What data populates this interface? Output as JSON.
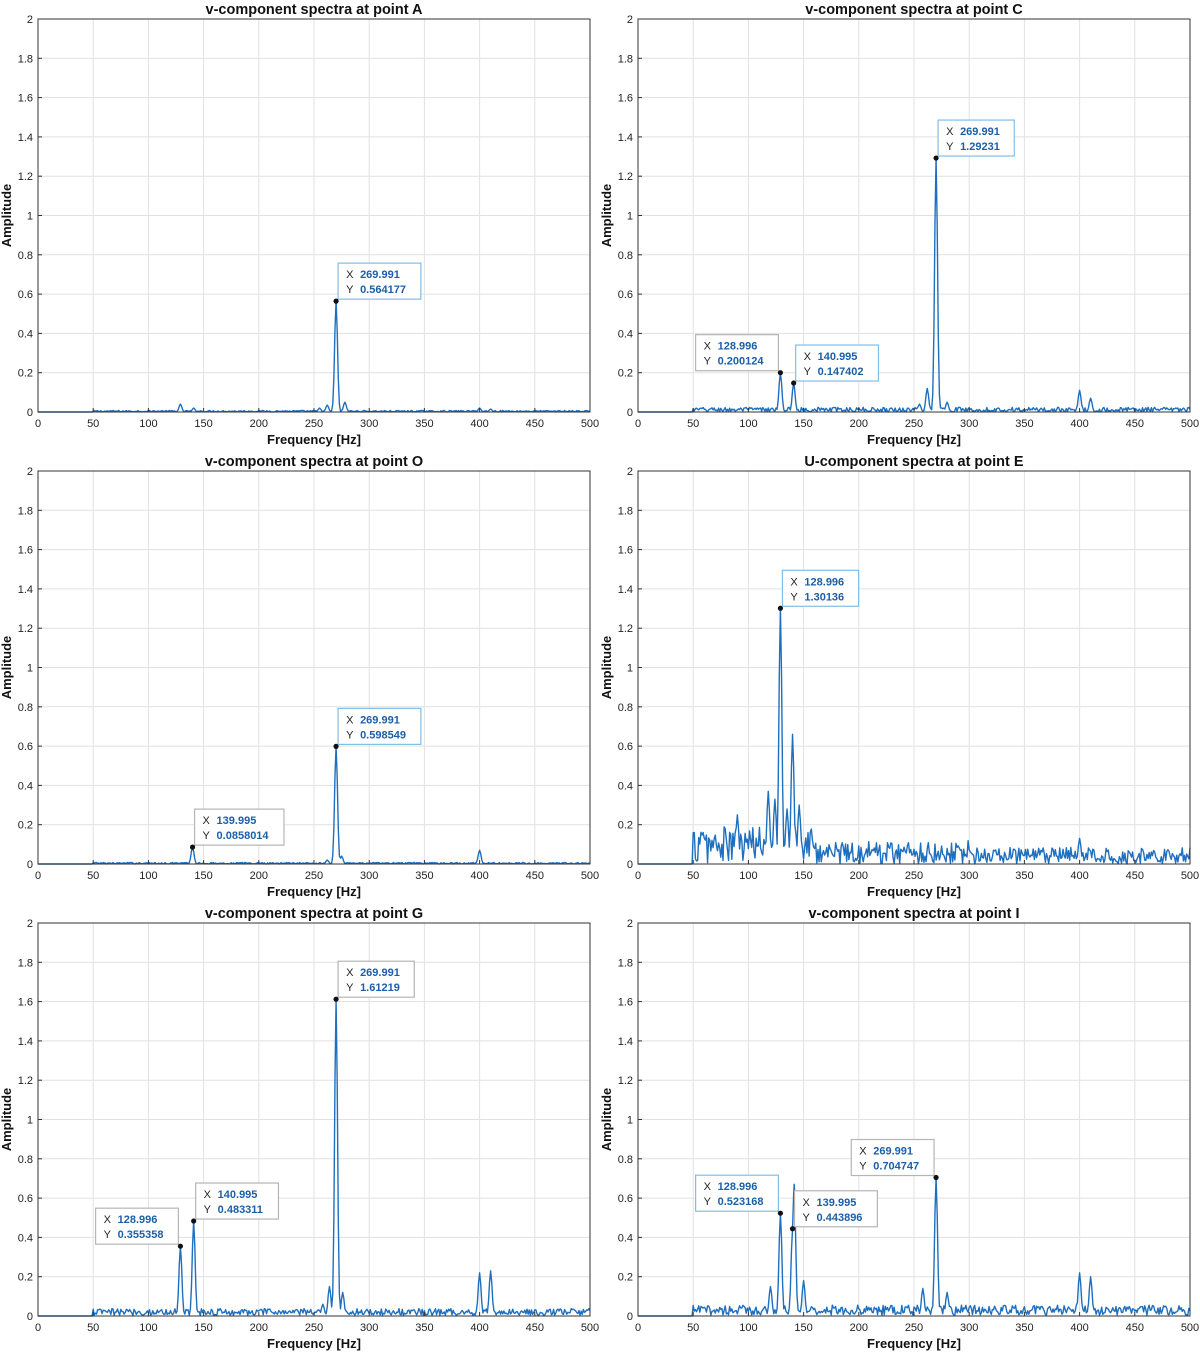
{
  "chart_data": [
    {
      "type": "line",
      "title": "v-component spectra at point A",
      "xlabel": "Frequency [Hz]",
      "ylabel": "Amplitude",
      "xlim": [
        0,
        500
      ],
      "ylim": [
        0,
        2
      ],
      "xticks": [
        0,
        50,
        100,
        150,
        200,
        250,
        300,
        350,
        400,
        450,
        500
      ],
      "yticks": [
        0,
        0.2,
        0.4,
        0.6,
        0.8,
        1,
        1.2,
        1.4,
        1.6,
        1.8,
        2
      ],
      "grid": true,
      "series_color": "#1f6fbf",
      "noise_floor": 0.004,
      "noise_amplitude": 0.004,
      "peaks": [
        {
          "x": 129,
          "y": 0.04
        },
        {
          "x": 141,
          "y": 0.02
        },
        {
          "x": 255,
          "y": 0.02
        },
        {
          "x": 262,
          "y": 0.035
        },
        {
          "x": 269.991,
          "y": 0.564177
        },
        {
          "x": 278,
          "y": 0.05
        },
        {
          "x": 400,
          "y": 0.02
        },
        {
          "x": 410,
          "y": 0.015
        }
      ],
      "datatips": [
        {
          "x": "269.991",
          "y": "0.564177",
          "xv": 269.991,
          "yv": 0.564177,
          "side": "right",
          "style": "selected"
        }
      ]
    },
    {
      "type": "line",
      "title": "v-component spectra at point C",
      "xlabel": "Frequency [Hz]",
      "ylabel": "Amplitude",
      "xlim": [
        0,
        500
      ],
      "ylim": [
        0,
        2
      ],
      "xticks": [
        0,
        50,
        100,
        150,
        200,
        250,
        300,
        350,
        400,
        450,
        500
      ],
      "yticks": [
        0,
        0.2,
        0.4,
        0.6,
        0.8,
        1,
        1.2,
        1.4,
        1.6,
        1.8,
        2
      ],
      "grid": true,
      "series_color": "#1f6fbf",
      "noise_floor": 0.012,
      "noise_amplitude": 0.012,
      "peaks": [
        {
          "x": 128.996,
          "y": 0.200124
        },
        {
          "x": 140.995,
          "y": 0.147402
        },
        {
          "x": 255,
          "y": 0.04
        },
        {
          "x": 262,
          "y": 0.12
        },
        {
          "x": 269.991,
          "y": 1.29231
        },
        {
          "x": 280,
          "y": 0.05
        },
        {
          "x": 400,
          "y": 0.11
        },
        {
          "x": 410,
          "y": 0.07
        }
      ],
      "datatips": [
        {
          "x": "269.991",
          "y": "1.29231",
          "xv": 269.991,
          "yv": 1.29231,
          "side": "right",
          "style": "selected"
        },
        {
          "x": "128.996",
          "y": "0.200124",
          "xv": 128.996,
          "yv": 0.200124,
          "side": "left",
          "style": "normal"
        },
        {
          "x": "140.995",
          "y": "0.147402",
          "xv": 140.995,
          "yv": 0.147402,
          "side": "right",
          "style": "selected"
        }
      ]
    },
    {
      "type": "line",
      "title": "v-component spectra at point O",
      "xlabel": "Frequency [Hz]",
      "ylabel": "Amplitude",
      "xlim": [
        0,
        500
      ],
      "ylim": [
        0,
        2
      ],
      "xticks": [
        0,
        50,
        100,
        150,
        200,
        250,
        300,
        350,
        400,
        450,
        500
      ],
      "yticks": [
        0,
        0.2,
        0.4,
        0.6,
        0.8,
        1,
        1.2,
        1.4,
        1.6,
        1.8,
        2
      ],
      "grid": true,
      "series_color": "#1f6fbf",
      "noise_floor": 0.004,
      "noise_amplitude": 0.004,
      "peaks": [
        {
          "x": 139.995,
          "y": 0.0858014
        },
        {
          "x": 262,
          "y": 0.02
        },
        {
          "x": 269.991,
          "y": 0.598549
        },
        {
          "x": 275,
          "y": 0.04
        },
        {
          "x": 400,
          "y": 0.07
        }
      ],
      "datatips": [
        {
          "x": "269.991",
          "y": "0.598549",
          "xv": 269.991,
          "yv": 0.598549,
          "side": "right",
          "style": "selected"
        },
        {
          "x": "139.995",
          "y": "0.0858014",
          "xv": 139.995,
          "yv": 0.0858014,
          "side": "right",
          "style": "normal"
        }
      ]
    },
    {
      "type": "line",
      "title": "U-component spectra at point E",
      "xlabel": "Frequency [Hz]",
      "ylabel": "Amplitude",
      "xlim": [
        0,
        500
      ],
      "ylim": [
        0,
        2
      ],
      "xticks": [
        0,
        50,
        100,
        150,
        200,
        250,
        300,
        350,
        400,
        450,
        500
      ],
      "yticks": [
        0,
        0.2,
        0.4,
        0.6,
        0.8,
        1,
        1.2,
        1.4,
        1.6,
        1.8,
        2
      ],
      "grid": true,
      "series_color": "#1f6fbf",
      "noise_floor": 0.06,
      "noise_amplitude": 0.06,
      "noise_decay": true,
      "peaks": [
        {
          "x": 90,
          "y": 0.25
        },
        {
          "x": 118,
          "y": 0.37
        },
        {
          "x": 124,
          "y": 0.33
        },
        {
          "x": 128.996,
          "y": 1.30136
        },
        {
          "x": 135,
          "y": 0.28
        },
        {
          "x": 140,
          "y": 0.66
        },
        {
          "x": 146,
          "y": 0.3
        },
        {
          "x": 400,
          "y": 0.13
        }
      ],
      "datatips": [
        {
          "x": "128.996",
          "y": "1.30136",
          "xv": 128.996,
          "yv": 1.30136,
          "side": "right",
          "style": "selected"
        }
      ]
    },
    {
      "type": "line",
      "title": "v-component spectra at point G",
      "xlabel": "Frequency [Hz]",
      "ylabel": "Amplitude",
      "xlim": [
        0,
        500
      ],
      "ylim": [
        0,
        2
      ],
      "xticks": [
        0,
        50,
        100,
        150,
        200,
        250,
        300,
        350,
        400,
        450,
        500
      ],
      "yticks": [
        0,
        0.2,
        0.4,
        0.6,
        0.8,
        1,
        1.2,
        1.4,
        1.6,
        1.8,
        2
      ],
      "grid": true,
      "series_color": "#1f6fbf",
      "noise_floor": 0.02,
      "noise_amplitude": 0.018,
      "peaks": [
        {
          "x": 128.996,
          "y": 0.355358
        },
        {
          "x": 140.995,
          "y": 0.483311
        },
        {
          "x": 258,
          "y": 0.06
        },
        {
          "x": 264,
          "y": 0.15
        },
        {
          "x": 269.991,
          "y": 1.61219
        },
        {
          "x": 276,
          "y": 0.12
        },
        {
          "x": 400,
          "y": 0.22
        },
        {
          "x": 410,
          "y": 0.23
        }
      ],
      "datatips": [
        {
          "x": "269.991",
          "y": "1.61219",
          "xv": 269.991,
          "yv": 1.61219,
          "side": "right",
          "style": "normal"
        },
        {
          "x": "128.996",
          "y": "0.355358",
          "xv": 128.996,
          "yv": 0.355358,
          "side": "left",
          "style": "normal"
        },
        {
          "x": "140.995",
          "y": "0.483311",
          "xv": 140.995,
          "yv": 0.483311,
          "side": "right",
          "style": "normal"
        }
      ]
    },
    {
      "type": "line",
      "title": "v-component spectra at point I",
      "xlabel": "Frequency [Hz]",
      "ylabel": "Amplitude",
      "xlim": [
        0,
        500
      ],
      "ylim": [
        0,
        2
      ],
      "xticks": [
        0,
        50,
        100,
        150,
        200,
        250,
        300,
        350,
        400,
        450,
        500
      ],
      "yticks": [
        0,
        0.2,
        0.4,
        0.6,
        0.8,
        1,
        1.2,
        1.4,
        1.6,
        1.8,
        2
      ],
      "grid": true,
      "series_color": "#1f6fbf",
      "noise_floor": 0.03,
      "noise_amplitude": 0.025,
      "peaks": [
        {
          "x": 120,
          "y": 0.15
        },
        {
          "x": 128.996,
          "y": 0.523168
        },
        {
          "x": 139.995,
          "y": 0.443896
        },
        {
          "x": 141.5,
          "y": 0.67
        },
        {
          "x": 150,
          "y": 0.18
        },
        {
          "x": 258,
          "y": 0.14
        },
        {
          "x": 269.991,
          "y": 0.704747
        },
        {
          "x": 280,
          "y": 0.12
        },
        {
          "x": 400,
          "y": 0.22
        },
        {
          "x": 410,
          "y": 0.2
        }
      ],
      "datatips": [
        {
          "x": "269.991",
          "y": "0.704747",
          "xv": 269.991,
          "yv": 0.704747,
          "side": "left",
          "style": "normal"
        },
        {
          "x": "128.996",
          "y": "0.523168",
          "xv": 128.996,
          "yv": 0.523168,
          "side": "left",
          "style": "selected"
        },
        {
          "x": "139.995",
          "y": "0.443896",
          "xv": 139.995,
          "yv": 0.443896,
          "side": "right",
          "style": "normal"
        }
      ]
    }
  ],
  "colors": {
    "trace": "#1f6fbf",
    "datatip_value": "#1c5fa8",
    "datatip_border_selected": "#7fbfe8",
    "datatip_border_normal": "#b5b5b5",
    "grid": "#e1e1e1"
  }
}
